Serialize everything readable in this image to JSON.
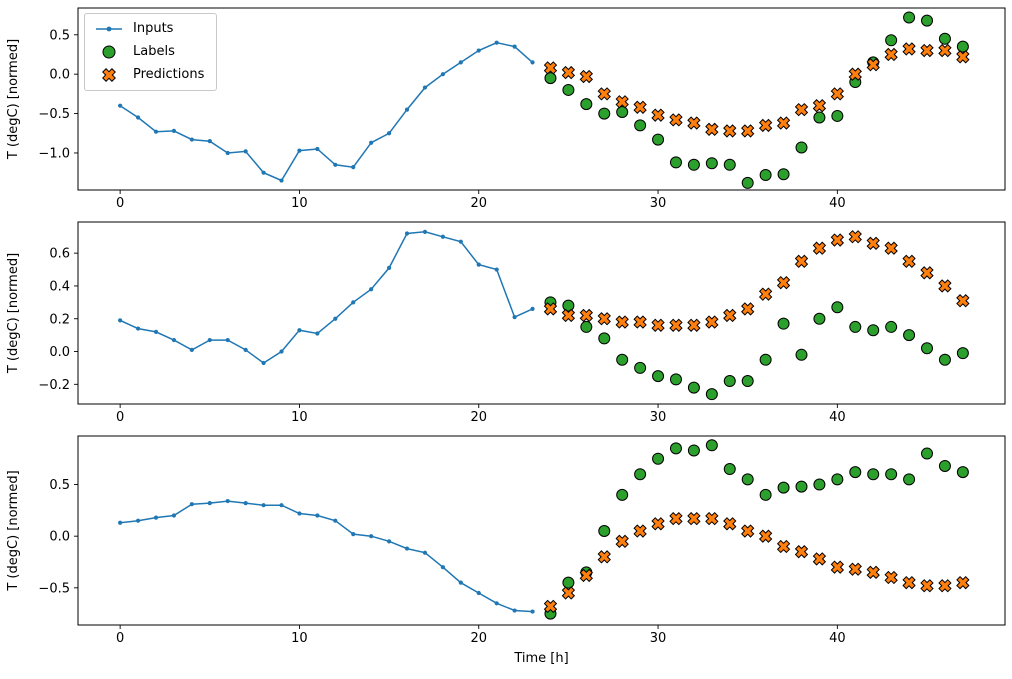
{
  "figure": {
    "bg": "#ffffff",
    "colors": {
      "inputs": "#1f77b4",
      "labels": "#2ca02c",
      "predictions": "#ff7f0e",
      "marker_edge": "#000000"
    },
    "legend": {
      "items": [
        {
          "label": "Inputs",
          "series": "inputs",
          "marker": "dot-line"
        },
        {
          "label": "Labels",
          "series": "labels",
          "marker": "circle"
        },
        {
          "label": "Predictions",
          "series": "predictions",
          "marker": "X"
        }
      ]
    },
    "xlabel": "Time [h]",
    "ylabel": "T (degC) [normed]"
  },
  "chart_data": [
    {
      "type": "line+scatter",
      "ylabel": "T (degC) [normed]",
      "xlabel": "",
      "xlim": [
        -2.35,
        49.35
      ],
      "ylim": [
        -1.47,
        0.84
      ],
      "xticks": [
        0,
        10,
        20,
        30,
        40
      ],
      "yticks": [
        -1.0,
        -0.5,
        0.0,
        0.5
      ],
      "series": [
        {
          "name": "Inputs",
          "type": "line",
          "marker": "dot",
          "color": "#1f77b4",
          "x": [
            0,
            1,
            2,
            3,
            4,
            5,
            6,
            7,
            8,
            9,
            10,
            11,
            12,
            13,
            14,
            15,
            16,
            17,
            18,
            19,
            20,
            21,
            22,
            23
          ],
          "y": [
            -0.4,
            -0.55,
            -0.73,
            -0.72,
            -0.83,
            -0.85,
            -1.0,
            -0.98,
            -1.25,
            -1.35,
            -0.97,
            -0.95,
            -1.15,
            -1.18,
            -0.87,
            -0.75,
            -0.45,
            -0.17,
            0.0,
            0.15,
            0.3,
            0.4,
            0.35,
            0.15
          ]
        },
        {
          "name": "Labels",
          "type": "scatter",
          "marker": "circle",
          "color": "#2ca02c",
          "x": [
            24,
            25,
            26,
            27,
            28,
            29,
            30,
            31,
            32,
            33,
            34,
            35,
            36,
            37,
            38,
            39,
            40,
            41,
            42,
            43,
            44,
            45,
            46,
            47
          ],
          "y": [
            -0.05,
            -0.2,
            -0.38,
            -0.5,
            -0.48,
            -0.65,
            -0.83,
            -1.12,
            -1.15,
            -1.13,
            -1.15,
            -1.38,
            -1.28,
            -1.27,
            -0.93,
            -0.55,
            -0.53,
            -0.1,
            0.15,
            0.43,
            0.72,
            0.68,
            0.45,
            0.35
          ]
        },
        {
          "name": "Predictions",
          "type": "scatter",
          "marker": "X",
          "color": "#ff7f0e",
          "x": [
            24,
            25,
            26,
            27,
            28,
            29,
            30,
            31,
            32,
            33,
            34,
            35,
            36,
            37,
            38,
            39,
            40,
            41,
            42,
            43,
            44,
            45,
            46,
            47
          ],
          "y": [
            0.08,
            0.02,
            -0.03,
            -0.25,
            -0.35,
            -0.42,
            -0.52,
            -0.58,
            -0.62,
            -0.7,
            -0.72,
            -0.72,
            -0.65,
            -0.62,
            -0.45,
            -0.4,
            -0.25,
            0.0,
            0.12,
            0.25,
            0.32,
            0.3,
            0.3,
            0.22
          ]
        }
      ]
    },
    {
      "type": "line+scatter",
      "ylabel": "T (degC) [normed]",
      "xlabel": "",
      "xlim": [
        -2.35,
        49.35
      ],
      "ylim": [
        -0.32,
        0.79
      ],
      "xticks": [
        0,
        10,
        20,
        30,
        40
      ],
      "yticks": [
        -0.2,
        0.0,
        0.2,
        0.4,
        0.6
      ],
      "series": [
        {
          "name": "Inputs",
          "type": "line",
          "marker": "dot",
          "color": "#1f77b4",
          "x": [
            0,
            1,
            2,
            3,
            4,
            5,
            6,
            7,
            8,
            9,
            10,
            11,
            12,
            13,
            14,
            15,
            16,
            17,
            18,
            19,
            20,
            21,
            22,
            23
          ],
          "y": [
            0.19,
            0.14,
            0.12,
            0.07,
            0.01,
            0.07,
            0.07,
            0.01,
            -0.07,
            0.0,
            0.13,
            0.11,
            0.2,
            0.3,
            0.38,
            0.51,
            0.72,
            0.73,
            0.7,
            0.67,
            0.53,
            0.5,
            0.21,
            0.26
          ]
        },
        {
          "name": "Labels",
          "type": "scatter",
          "marker": "circle",
          "color": "#2ca02c",
          "x": [
            24,
            25,
            26,
            27,
            28,
            29,
            30,
            31,
            32,
            33,
            34,
            35,
            36,
            37,
            38,
            39,
            40,
            41,
            42,
            43,
            44,
            45,
            46,
            47
          ],
          "y": [
            0.3,
            0.28,
            0.15,
            0.08,
            -0.05,
            -0.1,
            -0.15,
            -0.17,
            -0.22,
            -0.26,
            -0.18,
            -0.18,
            -0.05,
            0.17,
            -0.02,
            0.2,
            0.27,
            0.15,
            0.13,
            0.15,
            0.1,
            0.02,
            -0.05,
            -0.01
          ]
        },
        {
          "name": "Predictions",
          "type": "scatter",
          "marker": "X",
          "color": "#ff7f0e",
          "x": [
            24,
            25,
            26,
            27,
            28,
            29,
            30,
            31,
            32,
            33,
            34,
            35,
            36,
            37,
            38,
            39,
            40,
            41,
            42,
            43,
            44,
            45,
            46,
            47
          ],
          "y": [
            0.26,
            0.22,
            0.22,
            0.2,
            0.18,
            0.18,
            0.16,
            0.16,
            0.16,
            0.18,
            0.22,
            0.26,
            0.35,
            0.42,
            0.55,
            0.63,
            0.68,
            0.7,
            0.66,
            0.63,
            0.55,
            0.48,
            0.4,
            0.31
          ]
        }
      ]
    },
    {
      "type": "line+scatter",
      "ylabel": "T (degC) [normed]",
      "xlabel": "Time [h]",
      "xlim": [
        -2.35,
        49.35
      ],
      "ylim": [
        -0.86,
        0.97
      ],
      "xticks": [
        0,
        10,
        20,
        30,
        40
      ],
      "yticks": [
        -0.5,
        0.0,
        0.5
      ],
      "series": [
        {
          "name": "Inputs",
          "type": "line",
          "marker": "dot",
          "color": "#1f77b4",
          "x": [
            0,
            1,
            2,
            3,
            4,
            5,
            6,
            7,
            8,
            9,
            10,
            11,
            12,
            13,
            14,
            15,
            16,
            17,
            18,
            19,
            20,
            21,
            22,
            23
          ],
          "y": [
            0.13,
            0.15,
            0.18,
            0.2,
            0.31,
            0.32,
            0.34,
            0.32,
            0.3,
            0.3,
            0.22,
            0.2,
            0.15,
            0.02,
            0.0,
            -0.05,
            -0.12,
            -0.16,
            -0.3,
            -0.45,
            -0.55,
            -0.65,
            -0.72,
            -0.73
          ]
        },
        {
          "name": "Labels",
          "type": "scatter",
          "marker": "circle",
          "color": "#2ca02c",
          "x": [
            24,
            25,
            26,
            27,
            28,
            29,
            30,
            31,
            32,
            33,
            34,
            35,
            36,
            37,
            38,
            39,
            40,
            41,
            42,
            43,
            44,
            45,
            46,
            47
          ],
          "y": [
            -0.75,
            -0.45,
            -0.35,
            0.05,
            0.4,
            0.6,
            0.75,
            0.85,
            0.83,
            0.88,
            0.65,
            0.55,
            0.4,
            0.47,
            0.48,
            0.5,
            0.55,
            0.62,
            0.6,
            0.6,
            0.55,
            0.8,
            0.68,
            0.62
          ]
        },
        {
          "name": "Predictions",
          "type": "scatter",
          "marker": "X",
          "color": "#ff7f0e",
          "x": [
            24,
            25,
            26,
            27,
            28,
            29,
            30,
            31,
            32,
            33,
            34,
            35,
            36,
            37,
            38,
            39,
            40,
            41,
            42,
            43,
            44,
            45,
            46,
            47
          ],
          "y": [
            -0.68,
            -0.55,
            -0.38,
            -0.2,
            -0.05,
            0.05,
            0.12,
            0.17,
            0.17,
            0.17,
            0.12,
            0.05,
            0.0,
            -0.1,
            -0.15,
            -0.22,
            -0.3,
            -0.32,
            -0.35,
            -0.4,
            -0.45,
            -0.48,
            -0.48,
            -0.45
          ]
        }
      ]
    }
  ]
}
